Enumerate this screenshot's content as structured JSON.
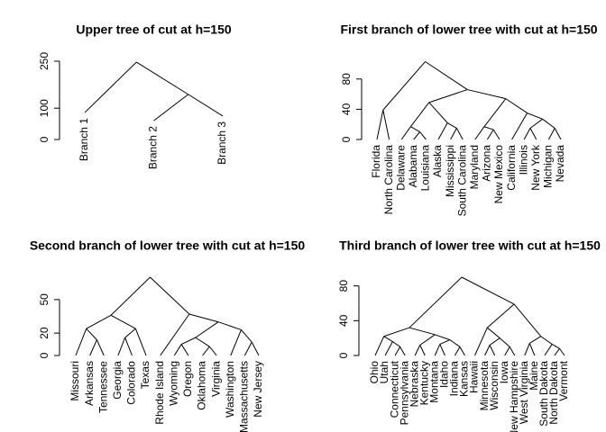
{
  "chart_data": [
    {
      "type": "dendrogram",
      "title": "Upper tree of cut at h=150",
      "ylim": [
        0,
        250
      ],
      "yticks": [
        0,
        100,
        250
      ],
      "tree": {
        "height": 247,
        "children": [
          {
            "label": "Branch 1",
            "height": 86
          },
          {
            "height": 144,
            "children": [
              {
                "label": "Branch 2",
                "height": 60
              },
              {
                "label": "Branch 3",
                "height": 75
              }
            ]
          }
        ]
      }
    },
    {
      "type": "dendrogram",
      "title": "First branch of lower tree with cut at h=150",
      "ylim": [
        0,
        100
      ],
      "yticks": [
        0,
        40,
        80
      ],
      "tree": {
        "height": 103,
        "children": [
          {
            "height": 39,
            "children": [
              {
                "label": "Florida",
                "height": 0
              },
              {
                "label": "North Carolina",
                "height": 0
              }
            ]
          },
          {
            "height": 66,
            "children": [
              {
                "height": 49,
                "children": [
                  {
                    "height": 17,
                    "children": [
                      {
                        "label": "Delaware",
                        "height": 0
                      },
                      {
                        "height": 10,
                        "children": [
                          {
                            "label": "Alabama",
                            "height": 0
                          },
                          {
                            "label": "Louisiana",
                            "height": 0
                          }
                        ]
                      }
                    ]
                  },
                  {
                    "height": 22,
                    "children": [
                      {
                        "label": "Alaska",
                        "height": 0
                      },
                      {
                        "height": 15,
                        "children": [
                          {
                            "label": "Mississippi",
                            "height": 0
                          },
                          {
                            "label": "South Carolina",
                            "height": 0
                          }
                        ]
                      }
                    ]
                  }
                ]
              },
              {
                "height": 54,
                "children": [
                  {
                    "height": 17,
                    "children": [
                      {
                        "label": "Maryland",
                        "height": 0
                      },
                      {
                        "height": 13,
                        "children": [
                          {
                            "label": "Arizona",
                            "height": 0
                          },
                          {
                            "label": "New Mexico",
                            "height": 0
                          }
                        ]
                      }
                    ]
                  },
                  {
                    "height": 35,
                    "children": [
                      {
                        "label": "California",
                        "height": 0
                      },
                      {
                        "height": 27,
                        "children": [
                          {
                            "height": 15,
                            "children": [
                              {
                                "label": "Illinois",
                                "height": 0
                              },
                              {
                                "label": "New York",
                                "height": 0
                              }
                            ]
                          },
                          {
                            "height": 15,
                            "children": [
                              {
                                "label": "Michigan",
                                "height": 0
                              },
                              {
                                "label": "Nevada",
                                "height": 0
                              }
                            ]
                          }
                        ]
                      }
                    ]
                  }
                ]
              }
            ]
          }
        ]
      }
    },
    {
      "type": "dendrogram",
      "title": "Second branch of lower tree with cut at h=150",
      "ylim": [
        0,
        70
      ],
      "yticks": [
        0,
        20,
        50
      ],
      "tree": {
        "height": 70,
        "children": [
          {
            "height": 36,
            "children": [
              {
                "height": 24,
                "children": [
                  {
                    "label": "Missouri",
                    "height": 0
                  },
                  {
                    "height": 14,
                    "children": [
                      {
                        "label": "Arkansas",
                        "height": 0
                      },
                      {
                        "label": "Tennessee",
                        "height": 0
                      }
                    ]
                  }
                ]
              },
              {
                "height": 24,
                "children": [
                  {
                    "height": 16,
                    "children": [
                      {
                        "label": "Georgia",
                        "height": 0
                      },
                      {
                        "label": "Colorado",
                        "height": 0
                      }
                    ]
                  },
                  {
                    "label": "Texas",
                    "height": 0
                  }
                ]
              }
            ]
          },
          {
            "height": 37,
            "children": [
              {
                "label": "Rhode Island",
                "height": 0
              },
              {
                "height": 30,
                "children": [
                  {
                    "height": 16,
                    "children": [
                      {
                        "height": 10,
                        "children": [
                          {
                            "label": "Wyoming",
                            "height": 0
                          },
                          {
                            "label": "Oregon",
                            "height": 0
                          }
                        ]
                      },
                      {
                        "height": 8,
                        "children": [
                          {
                            "label": "Oklahoma",
                            "height": 0
                          },
                          {
                            "label": "Virginia",
                            "height": 0
                          }
                        ]
                      }
                    ]
                  },
                  {
                    "height": 23,
                    "children": [
                      {
                        "label": "Washington",
                        "height": 0
                      },
                      {
                        "height": 12,
                        "children": [
                          {
                            "label": "Massachusetts",
                            "height": 0
                          },
                          {
                            "label": "New Jersey",
                            "height": 0
                          }
                        ]
                      }
                    ]
                  }
                ]
              }
            ]
          }
        ]
      }
    },
    {
      "type": "dendrogram",
      "title": "Third branch of lower tree with cut at h=150",
      "ylim": [
        0,
        90
      ],
      "yticks": [
        0,
        40,
        80
      ],
      "tree": {
        "height": 90,
        "children": [
          {
            "height": 32,
            "children": [
              {
                "height": 22,
                "children": [
                  {
                    "label": "Ohio",
                    "height": 0
                  },
                  {
                    "height": 16,
                    "children": [
                      {
                        "label": "Utah",
                        "height": 0
                      },
                      {
                        "height": 10,
                        "children": [
                          {
                            "label": "Connecticut",
                            "height": 0
                          },
                          {
                            "label": "Pennsylvania",
                            "height": 0
                          }
                        ]
                      }
                    ]
                  }
                ]
              },
              {
                "height": 24,
                "children": [
                  {
                    "height": 12,
                    "children": [
                      {
                        "label": "Nebraska",
                        "height": 0
                      },
                      {
                        "label": "Kentucky",
                        "height": 0
                      }
                    ]
                  },
                  {
                    "height": 18,
                    "children": [
                      {
                        "height": 13,
                        "children": [
                          {
                            "label": "Montana",
                            "height": 0
                          },
                          {
                            "label": "Idaho",
                            "height": 0
                          }
                        ]
                      },
                      {
                        "height": 10,
                        "children": [
                          {
                            "label": "Indiana",
                            "height": 0
                          },
                          {
                            "label": "Kansas",
                            "height": 0
                          }
                        ]
                      }
                    ]
                  }
                ]
              }
            ]
          },
          {
            "height": 59,
            "children": [
              {
                "height": 32,
                "children": [
                  {
                    "label": "Hawaii",
                    "height": 0
                  },
                  {
                    "height": 20,
                    "children": [
                      {
                        "height": 12,
                        "children": [
                          {
                            "label": "Minnesota",
                            "height": 0
                          },
                          {
                            "label": "Wisconsin",
                            "height": 0
                          }
                        ]
                      },
                      {
                        "height": 10,
                        "children": [
                          {
                            "label": "Iowa",
                            "height": 0
                          },
                          {
                            "label": "New Hampshire",
                            "height": 0
                          }
                        ]
                      }
                    ]
                  }
                ]
              },
              {
                "height": 22,
                "children": [
                  {
                    "height": 14,
                    "children": [
                      {
                        "label": "West Virginia",
                        "height": 0
                      },
                      {
                        "label": "Maine",
                        "height": 0
                      }
                    ]
                  },
                  {
                    "height": 13,
                    "children": [
                      {
                        "label": "South Dakota",
                        "height": 0
                      },
                      {
                        "height": 8,
                        "children": [
                          {
                            "label": "North Dakota",
                            "height": 0
                          },
                          {
                            "label": "Vermont",
                            "height": 0
                          }
                        ]
                      }
                    ]
                  }
                ]
              }
            ]
          }
        ]
      }
    }
  ]
}
